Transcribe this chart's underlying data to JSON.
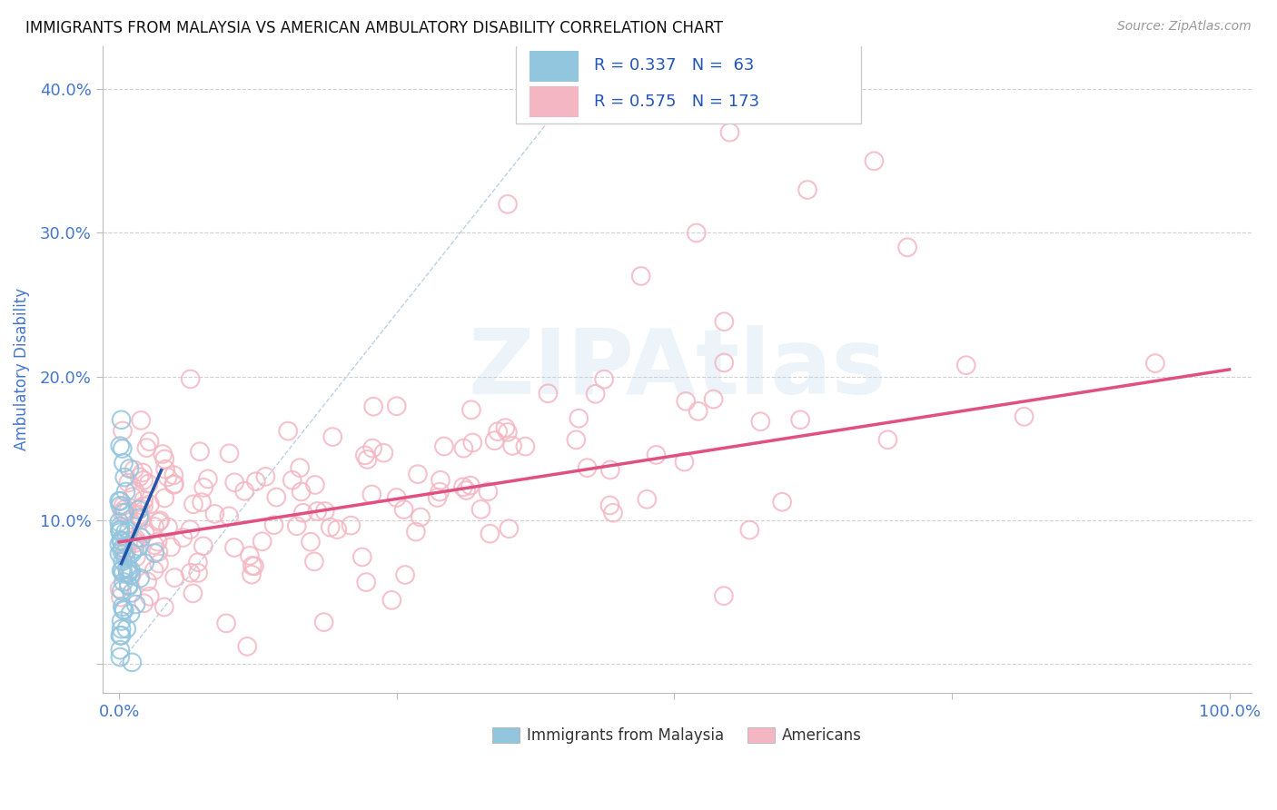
{
  "title": "IMMIGRANTS FROM MALAYSIA VS AMERICAN AMBULATORY DISABILITY CORRELATION CHART",
  "source": "Source: ZipAtlas.com",
  "ylabel": "Ambulatory Disability",
  "xlim": [
    0.0,
    1.0
  ],
  "ylim": [
    -0.02,
    0.43
  ],
  "xticks": [
    0.0,
    0.25,
    0.5,
    0.75,
    1.0
  ],
  "xticklabels": [
    "0.0%",
    "",
    "",
    "",
    "100.0%"
  ],
  "yticks": [
    0.0,
    0.1,
    0.2,
    0.3,
    0.4
  ],
  "yticklabels": [
    "",
    "10.0%",
    "20.0%",
    "30.0%",
    "40.0%"
  ],
  "legend_labels": [
    "Immigrants from Malaysia",
    "Americans"
  ],
  "blue_color": "#92c5de",
  "pink_color": "#f4b6c2",
  "blue_R": 0.337,
  "blue_N": 63,
  "pink_R": 0.575,
  "pink_N": 173,
  "watermark": "ZIPAtlas",
  "background_color": "#ffffff",
  "tick_color": "#4477cc",
  "grid_color": "#cccccc",
  "axis_label_color": "#4477cc"
}
